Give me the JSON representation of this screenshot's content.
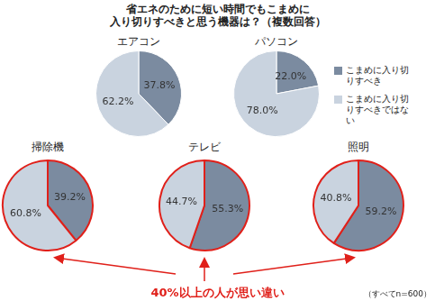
{
  "title": "省エネのために短い時間でもこまめに\n入り切りすべきと思う機器は？（複数回答）",
  "annotation": "40%以上の人が思い違い",
  "note": "（すべてn=600）",
  "chart_data": [
    {
      "type": "pie",
      "title": "エアコン",
      "categories": [
        "こまめに入り切りすべき",
        "こまめに入り切りすべきではない"
      ],
      "values": [
        37.8,
        62.2
      ],
      "value_labels": [
        "37.8%",
        "62.2%"
      ],
      "colors": [
        "#7b8ba0",
        "#c9d3df"
      ],
      "data_labels": true
    },
    {
      "type": "pie",
      "title": "パソコン",
      "categories": [
        "こまめに入り切りすべき",
        "こまめに入り切りすべきではない"
      ],
      "values": [
        22,
        78
      ],
      "value_labels": [
        "22.0%",
        "78.0%"
      ],
      "colors": [
        "#7b8ba0",
        "#c9d3df"
      ],
      "data_labels": true,
      "legend": "right"
    },
    {
      "type": "pie",
      "title": "掃除機",
      "categories": [
        "こまめに入り切りすべき",
        "こまめに入り切りすべきではない"
      ],
      "values": [
        39.2,
        60.8
      ],
      "value_labels": [
        "39.2%",
        "60.8%"
      ],
      "colors": [
        "#7b8ba0",
        "#c9d3df"
      ],
      "data_labels": true
    },
    {
      "type": "pie",
      "title": "テレビ",
      "categories": [
        "こまめに入り切りすべき",
        "こまめに入り切りすべきではない"
      ],
      "values": [
        55.3,
        44.7
      ],
      "value_labels": [
        "55.3%",
        "44.7%"
      ],
      "colors": [
        "#7b8ba0",
        "#c9d3df"
      ],
      "data_labels": true
    },
    {
      "type": "pie",
      "title": "照明",
      "categories": [
        "こまめに入り切りすべき",
        "こまめに入り切りすべきではない"
      ],
      "values": [
        59.2,
        40.8
      ],
      "value_labels": [
        "59.2%",
        "40.8%"
      ],
      "colors": [
        "#7b8ba0",
        "#c9d3df"
      ],
      "data_labels": true
    }
  ]
}
